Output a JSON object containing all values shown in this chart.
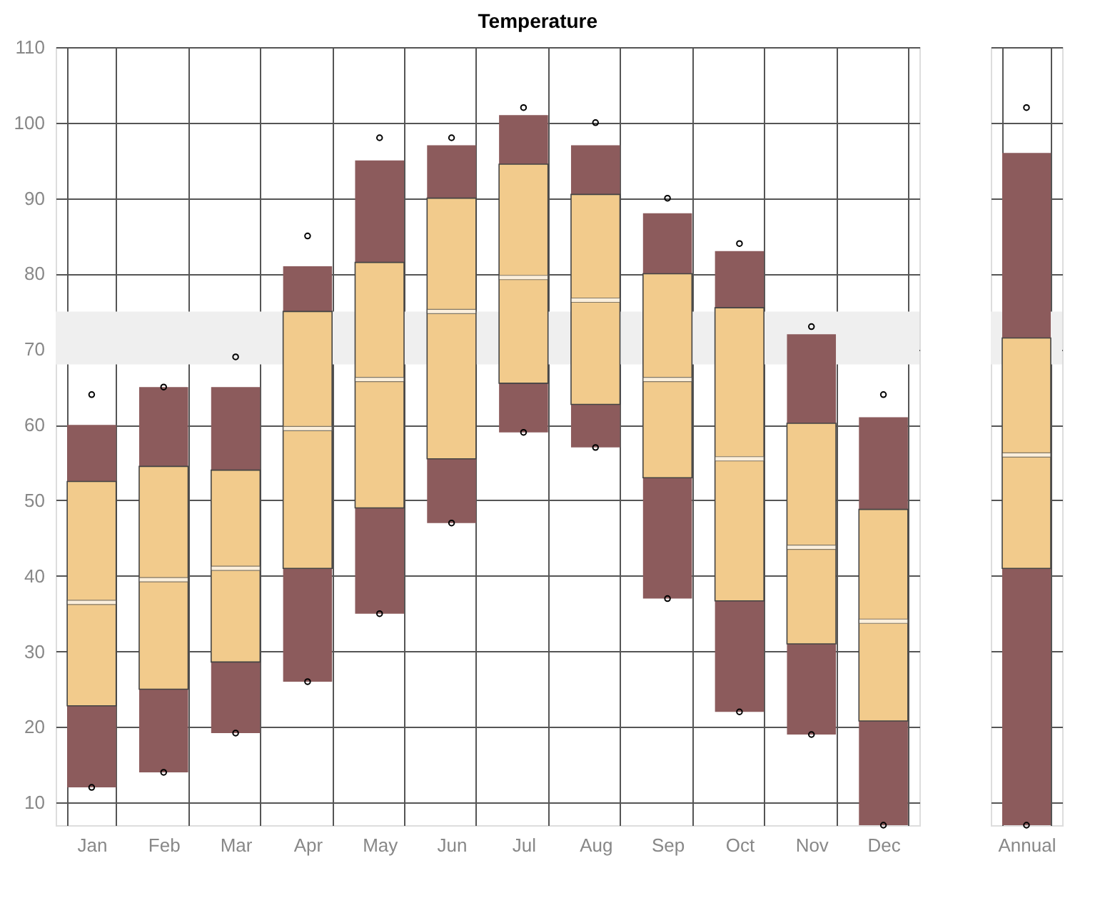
{
  "chart_data": [
    {
      "type": "box",
      "title": "Temperature",
      "categories": [
        "Jan",
        "Feb",
        "Mar",
        "Apr",
        "May",
        "Jun",
        "Jul",
        "Aug",
        "Sep",
        "Oct",
        "Nov",
        "Dec"
      ],
      "series": [
        {
          "color": "#f2cb8c",
          "boxes": [
            {
              "low": 12,
              "q1": 22.8,
              "median": 36.5,
              "q3": 52.5,
              "high": 60,
              "outliers": [
                64,
                12
              ]
            },
            {
              "low": 14,
              "q1": 25,
              "median": 39.5,
              "q3": 54.5,
              "high": 65,
              "outliers": [
                65,
                14
              ]
            },
            {
              "low": 19.2,
              "q1": 28.6,
              "median": 41,
              "q3": 54,
              "high": 65,
              "outliers": [
                69,
                19.2
              ]
            },
            {
              "low": 26,
              "q1": 41,
              "median": 59.5,
              "q3": 75,
              "high": 81,
              "outliers": [
                85,
                26
              ]
            },
            {
              "low": 35,
              "q1": 49,
              "median": 66,
              "q3": 81.5,
              "high": 95,
              "outliers": [
                98,
                35
              ]
            },
            {
              "low": 47,
              "q1": 55.5,
              "median": 75,
              "q3": 90,
              "high": 97,
              "outliers": [
                98,
                47
              ]
            },
            {
              "low": 59,
              "q1": 65.5,
              "median": 79.5,
              "q3": 94.5,
              "high": 101,
              "outliers": [
                102,
                59
              ]
            },
            {
              "low": 57,
              "q1": 62.7,
              "median": 76.5,
              "q3": 90.5,
              "high": 97,
              "outliers": [
                100,
                57
              ]
            },
            {
              "low": 37,
              "q1": 53,
              "median": 66,
              "q3": 80,
              "high": 88,
              "outliers": [
                90,
                37
              ]
            },
            {
              "low": 22,
              "q1": 36.7,
              "median": 55.5,
              "q3": 75.5,
              "high": 83,
              "outliers": [
                84,
                22
              ]
            },
            {
              "low": 19,
              "q1": 31,
              "median": 43.8,
              "q3": 60.2,
              "high": 72,
              "outliers": [
                73,
                19
              ]
            },
            {
              "low": 7,
              "q1": 20.8,
              "median": 34,
              "q3": 48.8,
              "high": 61,
              "outliers": [
                64,
                7
              ]
            }
          ]
        }
      ],
      "ylim": [
        7,
        110
      ],
      "yticks": [
        10,
        20,
        30,
        40,
        50,
        60,
        70,
        80,
        90,
        100,
        110
      ],
      "grid": true,
      "bands": [
        {
          "axis": "y",
          "from": 68,
          "to": 75,
          "color": "#efefef"
        }
      ]
    },
    {
      "type": "box",
      "categories": [
        "Annual"
      ],
      "series": [
        {
          "color": "#f2cb8c",
          "boxes": [
            {
              "low": 7,
              "q1": 41,
              "median": 56,
              "q3": 71.5,
              "high": 96,
              "outliers": [
                102,
                7
              ]
            }
          ]
        }
      ],
      "ylim": [
        7,
        110
      ],
      "yticks": [
        10,
        20,
        30,
        40,
        50,
        60,
        70,
        80,
        90,
        100,
        110
      ],
      "grid": true,
      "tick_labels": "x",
      "bands": [
        {
          "axis": "y",
          "from": 68,
          "to": 75,
          "color": "#efefef"
        }
      ]
    }
  ]
}
